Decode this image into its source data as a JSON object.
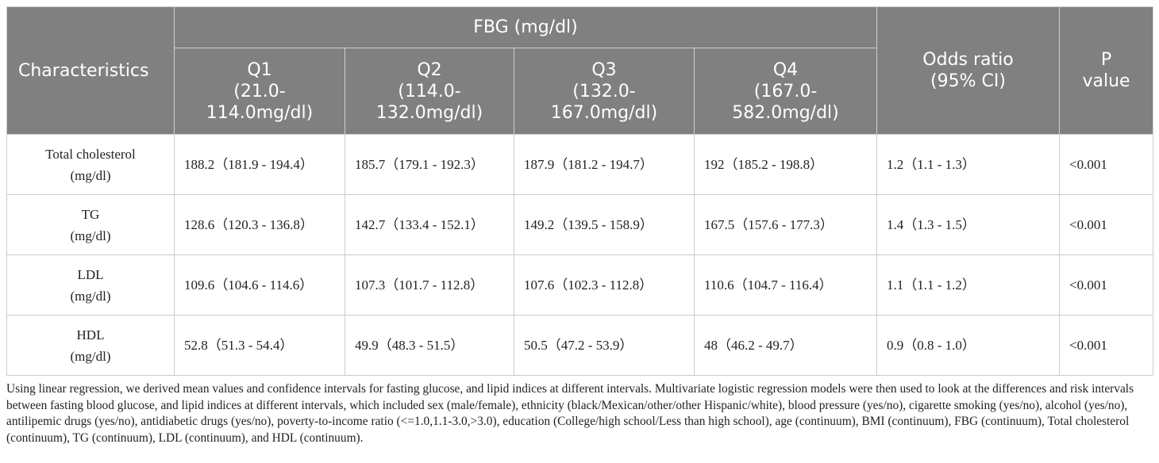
{
  "table": {
    "header": {
      "characteristics": "Characteristics",
      "group": "FBG (mg/dl)",
      "quartiles": [
        {
          "line1": "Q1",
          "line2": "(21.0-",
          "line3": "114.0mg/dl)"
        },
        {
          "line1": "Q2",
          "line2": "(114.0-",
          "line3": "132.0mg/dl)"
        },
        {
          "line1": "Q3",
          "line2": "(132.0-",
          "line3": "167.0mg/dl)"
        },
        {
          "line1": "Q4",
          "line2": "(167.0-",
          "line3": "582.0mg/dl)"
        }
      ],
      "odds_ratio": {
        "line1": "Odds ratio",
        "line2": "(95% CI)"
      },
      "p_value": {
        "line1": "P",
        "line2": "value"
      }
    },
    "rows": [
      {
        "label_line1": "Total cholesterol",
        "label_line2": "(mg/dl)",
        "q1": "188.2（181.9 - 194.4）",
        "q2": "185.7（179.1 - 192.3）",
        "q3": "187.9（181.2 - 194.7）",
        "q4": "192（185.2 - 198.8）",
        "odds": "1.2（1.1 - 1.3）",
        "p": "<0.001"
      },
      {
        "label_line1": "TG",
        "label_line2": "(mg/dl)",
        "q1": "128.6（120.3 - 136.8）",
        "q2": "142.7（133.4 - 152.1）",
        "q3": "149.2（139.5 - 158.9）",
        "q4": "167.5（157.6 - 177.3）",
        "odds": "1.4（1.3 - 1.5）",
        "p": "<0.001"
      },
      {
        "label_line1": "LDL",
        "label_line2": "(mg/dl)",
        "q1": "109.6（104.6 - 114.6）",
        "q2": "107.3（101.7 - 112.8）",
        "q3": "107.6（102.3 - 112.8）",
        "q4": "110.6（104.7 - 116.4）",
        "odds": "1.1（1.1 - 1.2）",
        "p": "<0.001"
      },
      {
        "label_line1": "HDL",
        "label_line2": "(mg/dl)",
        "q1": "52.8（51.3 - 54.4）",
        "q2": "49.9（48.3 - 51.5）",
        "q3": "50.5（47.2 - 53.9）",
        "q4": "48（46.2 - 49.7）",
        "odds": "0.9（0.8 - 1.0）",
        "p": "<0.001"
      }
    ]
  },
  "footnote": "Using linear regression, we derived mean values and confidence intervals for fasting glucose, and lipid indices at different intervals. Multivariate logistic regression models were then used to look at the differences and risk intervals between fasting blood glucose, and lipid indices at different intervals, which included sex (male/female), ethnicity (black/Mexican/other/other Hispanic/white), blood pressure (yes/no), cigarette smoking (yes/no), alcohol (yes/no), antilipemic drugs (yes/no), antidiabetic drugs (yes/no), poverty-to-income ratio (<=1.0,1.1-3.0,>3.0), education (College/high school/Less than high school), age (continuum), BMI (continuum), FBG (continuum), Total cholesterol (continuum), TG (continuum), LDL (continuum), and HDL (continuum).",
  "colors": {
    "header_bg": "#808080",
    "header_text": "#ffffff",
    "border": "#cccccc",
    "body_text": "#222222"
  }
}
